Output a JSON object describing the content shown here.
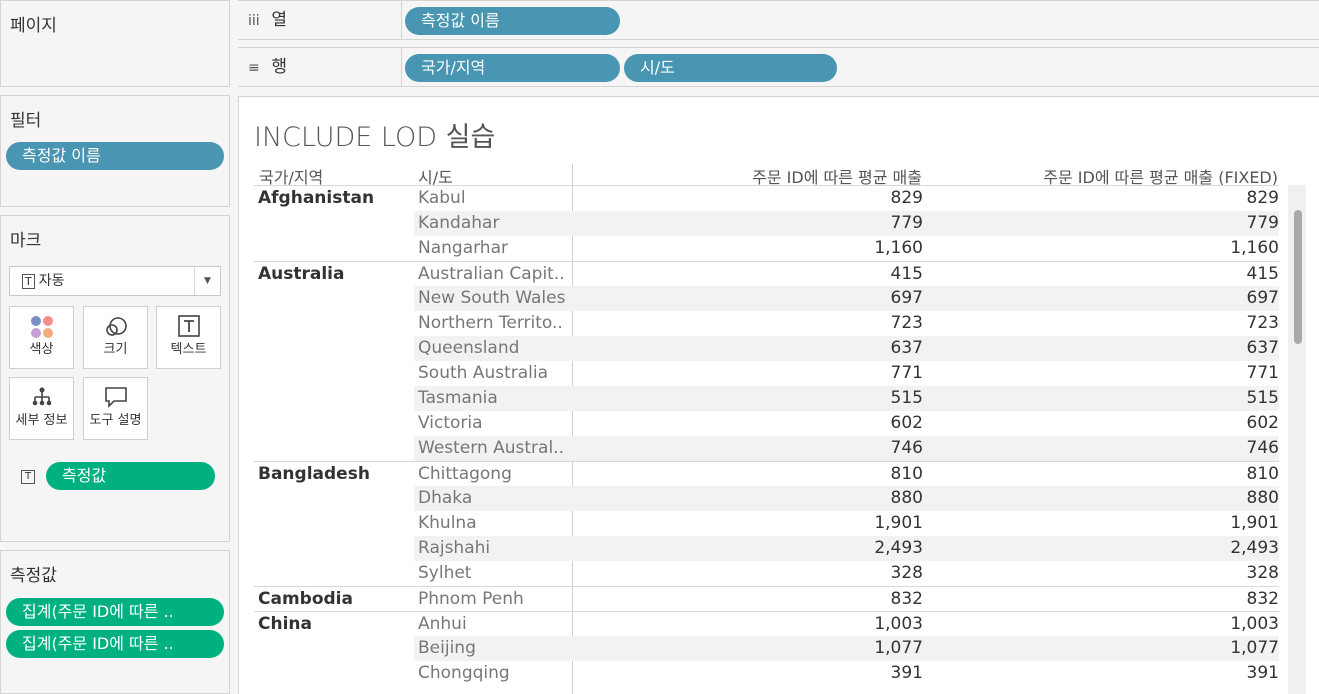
{
  "pages": {
    "title": "페이지"
  },
  "filters": {
    "title": "필터",
    "pill": "측정값 이름"
  },
  "marks": {
    "title": "마크",
    "type": "자동",
    "type_icon": "text-mark-icon",
    "buttons": [
      {
        "label": "색상",
        "icon": "color-icon"
      },
      {
        "label": "크기",
        "icon": "size-icon"
      },
      {
        "label": "텍스트",
        "icon": "text-icon"
      },
      {
        "label": "세부 정보",
        "icon": "detail-icon"
      },
      {
        "label": "도구 설명",
        "icon": "tooltip-icon"
      }
    ],
    "text_pill": "측정값"
  },
  "measures": {
    "title": "측정값",
    "pills": [
      "집계(주문 ID에 따른 ..",
      "집계(주문 ID에 따른 .."
    ]
  },
  "columns_shelf": {
    "label": "열",
    "icon": "iii",
    "pills": [
      "측정값 이름"
    ]
  },
  "rows_shelf": {
    "label": "행",
    "icon": "≡",
    "pills": [
      "국가/지역",
      "시/도"
    ]
  },
  "view": {
    "title": "INCLUDE LOD 실습",
    "headers": [
      "국가/지역",
      "시/도",
      "주문 ID에 따른 평균 매출",
      "주문 ID에 따른 평균 매출 (FIXED)"
    ],
    "rows": [
      {
        "country": "Afghanistan",
        "city": "Kabul",
        "v1": "829",
        "v2": "829"
      },
      {
        "country": "",
        "city": "Kandahar",
        "v1": "779",
        "v2": "779"
      },
      {
        "country": "",
        "city": "Nangarhar",
        "v1": "1,160",
        "v2": "1,160"
      },
      {
        "country": "Australia",
        "city": "Australian Capit..",
        "v1": "415",
        "v2": "415"
      },
      {
        "country": "",
        "city": "New South Wales",
        "v1": "697",
        "v2": "697"
      },
      {
        "country": "",
        "city": "Northern Territo..",
        "v1": "723",
        "v2": "723"
      },
      {
        "country": "",
        "city": "Queensland",
        "v1": "637",
        "v2": "637"
      },
      {
        "country": "",
        "city": "South Australia",
        "v1": "771",
        "v2": "771"
      },
      {
        "country": "",
        "city": "Tasmania",
        "v1": "515",
        "v2": "515"
      },
      {
        "country": "",
        "city": "Victoria",
        "v1": "602",
        "v2": "602"
      },
      {
        "country": "",
        "city": "Western Austral..",
        "v1": "746",
        "v2": "746"
      },
      {
        "country": "Bangladesh",
        "city": "Chittagong",
        "v1": "810",
        "v2": "810"
      },
      {
        "country": "",
        "city": "Dhaka",
        "v1": "880",
        "v2": "880"
      },
      {
        "country": "",
        "city": "Khulna",
        "v1": "1,901",
        "v2": "1,901"
      },
      {
        "country": "",
        "city": "Rajshahi",
        "v1": "2,493",
        "v2": "2,493"
      },
      {
        "country": "",
        "city": "Sylhet",
        "v1": "328",
        "v2": "328"
      },
      {
        "country": "Cambodia",
        "city": "Phnom Penh",
        "v1": "832",
        "v2": "832"
      },
      {
        "country": "China",
        "city": "Anhui",
        "v1": "1,003",
        "v2": "1,003"
      },
      {
        "country": "",
        "city": "Beijing",
        "v1": "1,077",
        "v2": "1,077"
      },
      {
        "country": "",
        "city": "Chongqing",
        "v1": "391",
        "v2": "391"
      }
    ]
  },
  "colors": {
    "dimension_pill": "#4996b2",
    "measure_pill": "#00b180"
  }
}
